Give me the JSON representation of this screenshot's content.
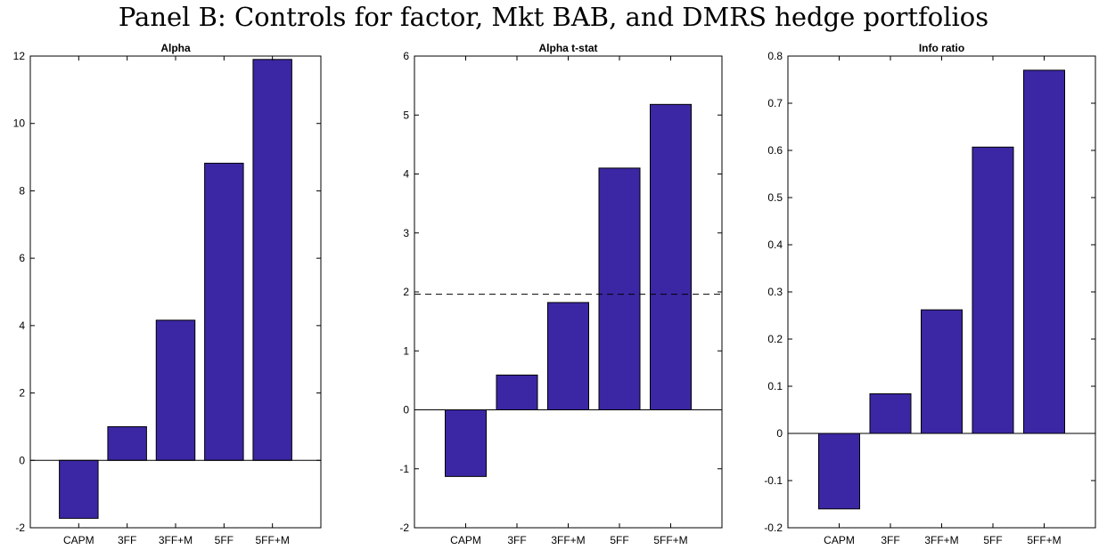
{
  "title": "Panel B: Controls for factor, Mkt BAB, and DMRS hedge portfolios",
  "colors": {
    "bar": "#3b27a4",
    "bar_edge": "#000000",
    "axis": "#000000"
  },
  "chart_data": [
    {
      "type": "bar",
      "title": "Alpha",
      "categories": [
        "CAPM",
        "3FF",
        "3FF+M",
        "5FF",
        "5FF+M"
      ],
      "values": [
        -1.72,
        1.0,
        4.16,
        8.82,
        11.9
      ],
      "ylim": [
        -2,
        12
      ],
      "yticks": [
        -2,
        0,
        2,
        4,
        6,
        8,
        10,
        12
      ],
      "xlabel": "",
      "ylabel": "",
      "grid": false
    },
    {
      "type": "bar",
      "title": "Alpha t-stat",
      "categories": [
        "CAPM",
        "3FF",
        "3FF+M",
        "5FF",
        "5FF+M"
      ],
      "values": [
        -1.13,
        0.59,
        1.82,
        4.1,
        5.18
      ],
      "ylim": [
        -2,
        6
      ],
      "yticks": [
        -2,
        -1,
        0,
        1,
        2,
        3,
        4,
        5,
        6
      ],
      "reference_line": 1.96,
      "xlabel": "",
      "ylabel": "",
      "grid": false
    },
    {
      "type": "bar",
      "title": "Info ratio",
      "categories": [
        "CAPM",
        "3FF",
        "3FF+M",
        "5FF",
        "5FF+M"
      ],
      "values": [
        -0.16,
        0.084,
        0.262,
        0.607,
        0.77
      ],
      "ylim": [
        -0.2,
        0.8
      ],
      "yticks": [
        -0.2,
        -0.1,
        0,
        0.1,
        0.2,
        0.3,
        0.4,
        0.5,
        0.6,
        0.7,
        0.8
      ],
      "xlabel": "",
      "ylabel": "",
      "grid": false
    }
  ]
}
